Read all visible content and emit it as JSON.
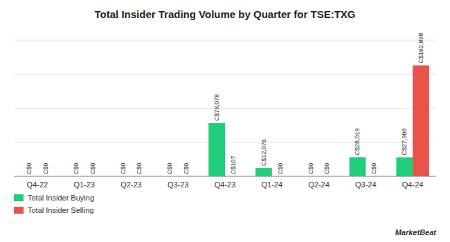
{
  "chart_data": {
    "type": "bar",
    "title": "Total Insider Trading Volume by Quarter for TSE:TXG",
    "categories": [
      "Q4-22",
      "Q1-23",
      "Q2-23",
      "Q3-23",
      "Q4-23",
      "Q1-24",
      "Q2-24",
      "Q3-24",
      "Q4-24"
    ],
    "series": [
      {
        "name": "Total Insider Buying",
        "color": "#21ce7a",
        "values": [
          0,
          0,
          0,
          0,
          78078,
          12076,
          0,
          28019,
          27908
        ],
        "value_labels": [
          "C$0",
          "C$0",
          "C$0",
          "C$0",
          "C$78,078",
          "C$12,076",
          "C$0",
          "C$28,019",
          "C$27,908"
        ]
      },
      {
        "name": "Total Insider Selling",
        "color": "#e8534a",
        "values": [
          0,
          0,
          0,
          0,
          107,
          0,
          0,
          0,
          162898
        ],
        "value_labels": [
          "C$0",
          "C$0",
          "C$0",
          "C$0",
          "C$107",
          "C$0",
          "C$0",
          "C$0",
          "C$162,898"
        ]
      }
    ],
    "ylim": [
      0,
      200000
    ],
    "yticks": [
      0,
      50000,
      100000,
      150000,
      200000
    ],
    "grid": true,
    "tick_labels": "x",
    "data_labels": true,
    "legend": "lower left",
    "annotations": [
      "MarketBeat"
    ]
  }
}
